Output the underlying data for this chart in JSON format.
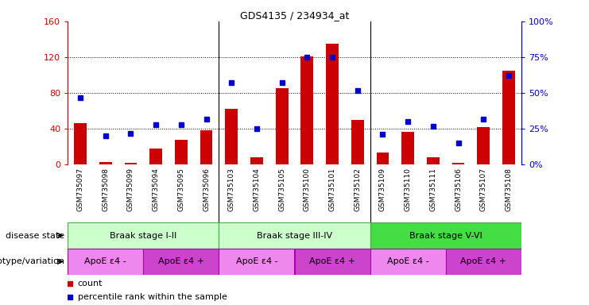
{
  "title": "GDS4135 / 234934_at",
  "samples": [
    "GSM735097",
    "GSM735098",
    "GSM735099",
    "GSM735094",
    "GSM735095",
    "GSM735096",
    "GSM735103",
    "GSM735104",
    "GSM735105",
    "GSM735100",
    "GSM735101",
    "GSM735102",
    "GSM735109",
    "GSM735110",
    "GSM735111",
    "GSM735106",
    "GSM735107",
    "GSM735108"
  ],
  "counts": [
    46,
    3,
    2,
    18,
    28,
    38,
    62,
    8,
    85,
    121,
    135,
    50,
    14,
    37,
    8,
    2,
    42,
    105
  ],
  "percentiles": [
    47,
    20,
    22,
    28,
    28,
    32,
    57,
    25,
    57,
    75,
    75,
    52,
    21,
    30,
    27,
    15,
    32,
    62
  ],
  "disease_stages": [
    {
      "label": "Braak stage I-II",
      "start": 0,
      "end": 6,
      "color": "#ccffcc"
    },
    {
      "label": "Braak stage III-IV",
      "start": 6,
      "end": 12,
      "color": "#ccffcc"
    },
    {
      "label": "Braak stage V-VI",
      "start": 12,
      "end": 18,
      "color": "#44dd44"
    }
  ],
  "genotype_groups": [
    {
      "label": "ApoE ε4 -",
      "start": 0,
      "end": 3,
      "color": "#ee88ee"
    },
    {
      "label": "ApoE ε4 +",
      "start": 3,
      "end": 6,
      "color": "#cc44cc"
    },
    {
      "label": "ApoE ε4 -",
      "start": 6,
      "end": 9,
      "color": "#ee88ee"
    },
    {
      "label": "ApoE ε4 +",
      "start": 9,
      "end": 12,
      "color": "#cc44cc"
    },
    {
      "label": "ApoE ε4 -",
      "start": 12,
      "end": 15,
      "color": "#ee88ee"
    },
    {
      "label": "ApoE ε4 +",
      "start": 15,
      "end": 18,
      "color": "#cc44cc"
    }
  ],
  "bar_color": "#cc0000",
  "dot_color": "#0000cc",
  "ylim_left": [
    0,
    160
  ],
  "ylim_right": [
    0,
    100
  ],
  "yticks_left": [
    0,
    40,
    80,
    120,
    160
  ],
  "yticks_right": [
    0,
    25,
    50,
    75,
    100
  ],
  "ytick_labels_left": [
    "0",
    "40",
    "80",
    "120",
    "160"
  ],
  "ytick_labels_right": [
    "0%",
    "25%",
    "50%",
    "75%",
    "100%"
  ],
  "legend_count_label": "count",
  "legend_percentile_label": "percentile rank within the sample",
  "disease_state_label": "disease state",
  "genotype_label": "genotype/variation",
  "tick_bg_color": "#dddddd",
  "stage_edge_color": "#44aa44",
  "geno_edge_color": "#aa00aa",
  "dotted_line_color": "#aaaaaa"
}
